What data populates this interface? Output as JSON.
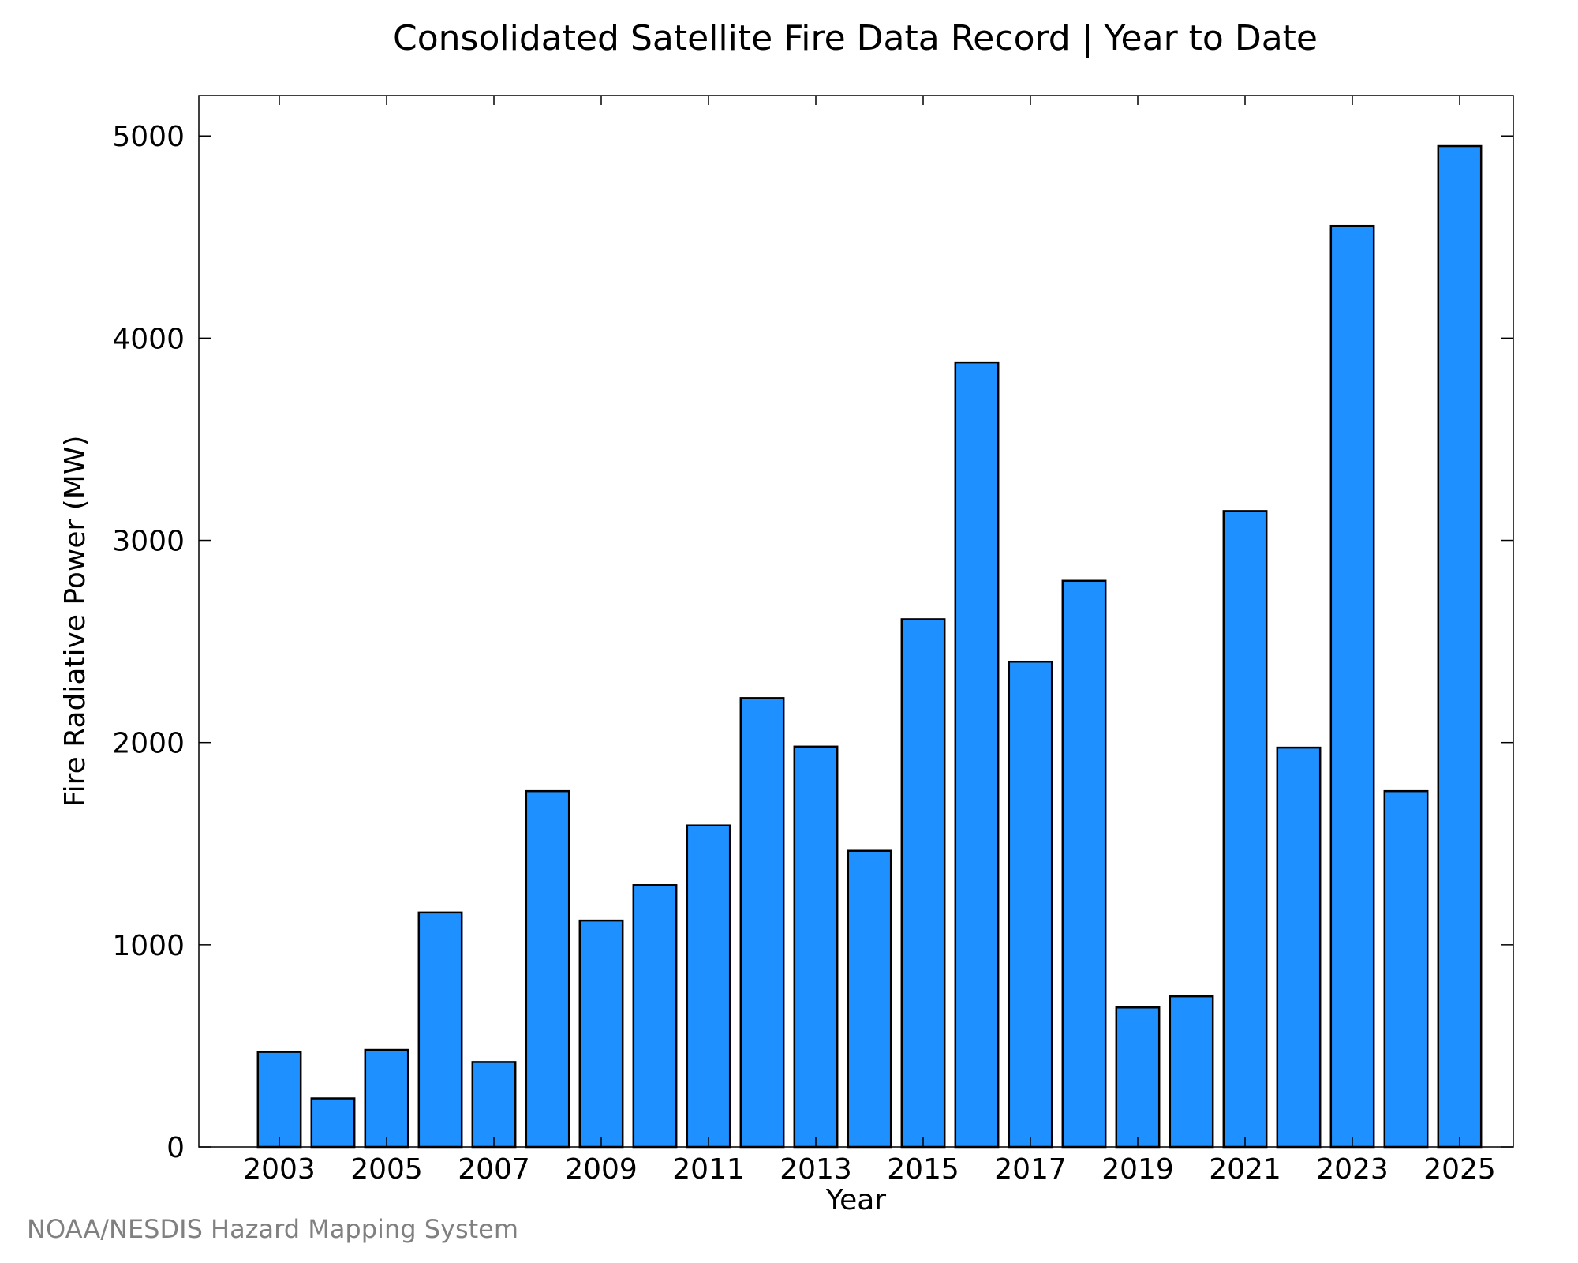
{
  "chart_data": {
    "type": "bar",
    "title": "Consolidated Satellite Fire Data Record | Year to Date",
    "xlabel": "Year",
    "ylabel": "Fire Radiative Power (MW)",
    "categories": [
      2003,
      2004,
      2005,
      2006,
      2007,
      2008,
      2009,
      2010,
      2011,
      2012,
      2013,
      2014,
      2015,
      2016,
      2017,
      2018,
      2019,
      2020,
      2021,
      2022,
      2023,
      2024,
      2025
    ],
    "values": [
      470,
      240,
      480,
      1160,
      420,
      1760,
      1120,
      1295,
      1590,
      2220,
      1980,
      1465,
      2610,
      3880,
      2400,
      2800,
      690,
      745,
      3145,
      1975,
      4555,
      1760,
      4950
    ],
    "x_tick_labels": [
      "2003",
      "2005",
      "2007",
      "2009",
      "2011",
      "2013",
      "2015",
      "2017",
      "2019",
      "2021",
      "2023",
      "2025"
    ],
    "y_ticks": [
      0,
      1000,
      2000,
      3000,
      4000,
      5000
    ],
    "ylim": [
      0,
      5200
    ],
    "xlim": [
      2001.5,
      2026
    ],
    "grid": false,
    "bar_color": "#1e90ff",
    "bar_edge_color": "#000000"
  },
  "credit": "NOAA/NESDIS Hazard Mapping System"
}
